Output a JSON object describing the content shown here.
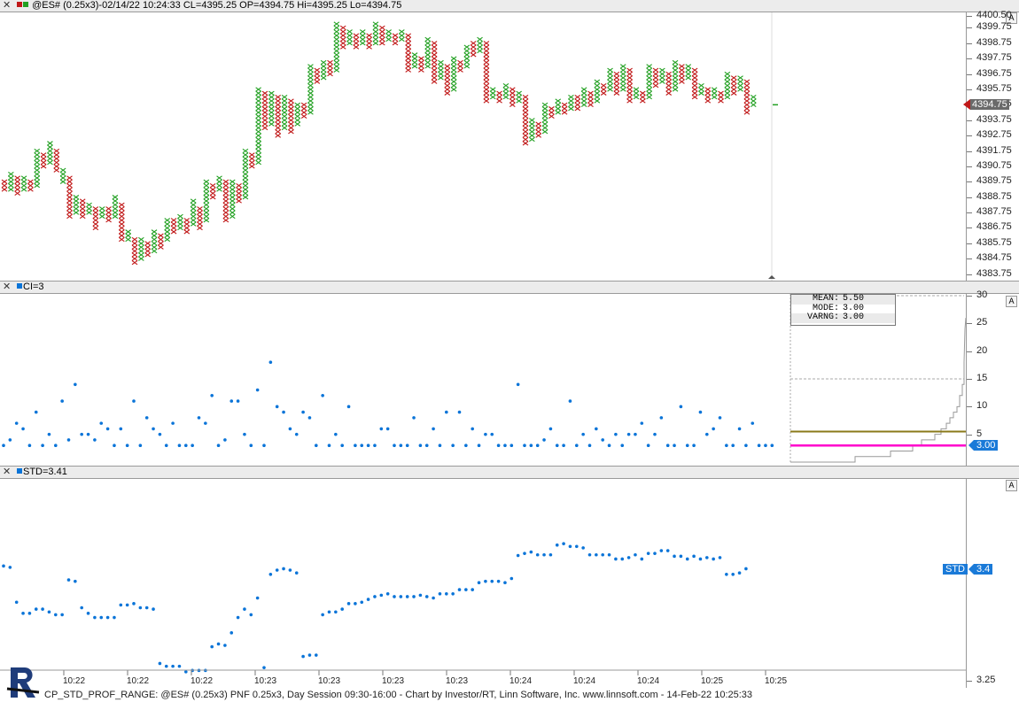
{
  "colors": {
    "up": "#22a022",
    "down": "#c01818",
    "dot": "#0a74d8",
    "olive": "#8a7a1a",
    "magenta": "#ff00cc",
    "grid": "#b0b0b0",
    "labelbg": "#1a7ad8",
    "pricebg": "#6a6a6a"
  },
  "main": {
    "title": "@ES# (0.25x3)-02/14/22 10:24:33 CL=4395.25 OP=4394.75 Hi=4395.25 Lo=4394.75",
    "ticks": [
      "4400.50",
      "4399.75",
      "4398.75",
      "4397.75",
      "4396.75",
      "4395.75",
      "4394.75",
      "4393.75",
      "4392.75",
      "4391.75",
      "4390.75",
      "4389.75",
      "4388.75",
      "4387.75",
      "4386.75",
      "4385.75",
      "4384.75",
      "4383.75"
    ],
    "price_label": "4394.75",
    "a_label": "A"
  },
  "ci": {
    "title": "CI=3",
    "ticks": [
      "30",
      "25",
      "20",
      "15",
      "10",
      "5"
    ],
    "value_label": "3.00",
    "a_label": "A",
    "stats": [
      {
        "k": "MEAN:",
        "v": "5.50"
      },
      {
        "k": "MODE:",
        "v": "3.00"
      },
      {
        "k": "VARNG:",
        "v": "3.00"
      }
    ]
  },
  "std": {
    "title": "STD=3.41",
    "ticks": [
      "3.25"
    ],
    "series_label": "STD",
    "value_label": "3.4",
    "a_label": "A"
  },
  "x_axis": {
    "labels": [
      "10:22",
      "10:22",
      "10:22",
      "10:23",
      "10:23",
      "10:23",
      "10:23",
      "10:24",
      "10:24",
      "10:24",
      "10:25",
      "10:25"
    ]
  },
  "footer": "CP_STD_PROF_RANGE: @ES# (0.25x3) PNF 0.25x3, Day Session 09:30-16:00 - Chart by Investor/RT, Linn Software, Inc. www.linnsoft.com - 14-Feb-22 10:25:33",
  "chart_data": [
    {
      "type": "point-and-figure",
      "title": "@ES# (0.25x3)-02/14/22 10:24:33 CL=4395.25 OP=4394.75 Hi=4395.25 Lo=4394.75",
      "box_size": 0.25,
      "y_ticks": [
        4400.5,
        4399.75,
        4398.75,
        4397.75,
        4396.75,
        4395.75,
        4394.75,
        4393.75,
        4392.75,
        4391.75,
        4390.75,
        4389.75,
        4388.75,
        4387.75,
        4386.75,
        4385.75,
        4384.75,
        4383.75
      ],
      "ylim": [
        4383.5,
        4400.75
      ],
      "last_price": 4394.75,
      "columns": [
        {
          "t": "O",
          "lo": 4389.25,
          "hi": 4389.75
        },
        {
          "t": "X",
          "lo": 4389.25,
          "hi": 4390.25
        },
        {
          "t": "O",
          "lo": 4389.0,
          "hi": 4390.0
        },
        {
          "t": "X",
          "lo": 4389.25,
          "hi": 4390.0
        },
        {
          "t": "O",
          "lo": 4389.25,
          "hi": 4389.75
        },
        {
          "t": "X",
          "lo": 4389.5,
          "hi": 4391.75
        },
        {
          "t": "O",
          "lo": 4390.75,
          "hi": 4391.5
        },
        {
          "t": "X",
          "lo": 4391.0,
          "hi": 4392.25
        },
        {
          "t": "O",
          "lo": 4390.5,
          "hi": 4391.75
        },
        {
          "t": "X",
          "lo": 4389.75,
          "hi": 4390.5
        },
        {
          "t": "O",
          "lo": 4387.5,
          "hi": 4390.0
        },
        {
          "t": "X",
          "lo": 4387.75,
          "hi": 4388.75
        },
        {
          "t": "O",
          "lo": 4387.5,
          "hi": 4388.5
        },
        {
          "t": "X",
          "lo": 4387.75,
          "hi": 4388.25
        },
        {
          "t": "O",
          "lo": 4386.75,
          "hi": 4388.0
        },
        {
          "t": "X",
          "lo": 4387.5,
          "hi": 4388.0
        },
        {
          "t": "O",
          "lo": 4387.25,
          "hi": 4388.0
        },
        {
          "t": "X",
          "lo": 4387.5,
          "hi": 4388.75
        },
        {
          "t": "O",
          "lo": 4386.0,
          "hi": 4388.25
        },
        {
          "t": "X",
          "lo": 4386.0,
          "hi": 4386.5
        },
        {
          "t": "O",
          "lo": 4384.5,
          "hi": 4386.0
        },
        {
          "t": "X",
          "lo": 4384.75,
          "hi": 4386.0
        },
        {
          "t": "O",
          "lo": 4385.0,
          "hi": 4385.75
        },
        {
          "t": "X",
          "lo": 4385.25,
          "hi": 4386.5
        },
        {
          "t": "O",
          "lo": 4385.5,
          "hi": 4386.25
        },
        {
          "t": "X",
          "lo": 4386.0,
          "hi": 4387.25
        },
        {
          "t": "O",
          "lo": 4386.5,
          "hi": 4387.25
        },
        {
          "t": "X",
          "lo": 4386.75,
          "hi": 4387.5
        },
        {
          "t": "O",
          "lo": 4386.5,
          "hi": 4387.25
        },
        {
          "t": "X",
          "lo": 4387.0,
          "hi": 4388.5
        },
        {
          "t": "O",
          "lo": 4386.75,
          "hi": 4388.0
        },
        {
          "t": "X",
          "lo": 4387.25,
          "hi": 4389.75
        },
        {
          "t": "O",
          "lo": 4388.75,
          "hi": 4389.5
        },
        {
          "t": "X",
          "lo": 4389.25,
          "hi": 4390.0
        },
        {
          "t": "O",
          "lo": 4387.25,
          "hi": 4389.75
        },
        {
          "t": "X",
          "lo": 4387.5,
          "hi": 4389.75
        },
        {
          "t": "O",
          "lo": 4388.5,
          "hi": 4389.5
        },
        {
          "t": "X",
          "lo": 4388.75,
          "hi": 4391.75
        },
        {
          "t": "O",
          "lo": 4390.75,
          "hi": 4391.5
        },
        {
          "t": "X",
          "lo": 4391.0,
          "hi": 4395.75
        },
        {
          "t": "O",
          "lo": 4393.25,
          "hi": 4395.5
        },
        {
          "t": "X",
          "lo": 4393.5,
          "hi": 4395.5
        },
        {
          "t": "O",
          "lo": 4392.75,
          "hi": 4395.25
        },
        {
          "t": "X",
          "lo": 4393.25,
          "hi": 4395.25
        },
        {
          "t": "O",
          "lo": 4393.0,
          "hi": 4395.0
        },
        {
          "t": "X",
          "lo": 4393.5,
          "hi": 4394.75
        },
        {
          "t": "O",
          "lo": 4394.0,
          "hi": 4394.75
        },
        {
          "t": "X",
          "lo": 4394.25,
          "hi": 4397.25
        },
        {
          "t": "O",
          "lo": 4396.25,
          "hi": 4397.0
        },
        {
          "t": "X",
          "lo": 4396.5,
          "hi": 4397.5
        },
        {
          "t": "O",
          "lo": 4396.75,
          "hi": 4397.5
        },
        {
          "t": "X",
          "lo": 4397.0,
          "hi": 4400.0
        },
        {
          "t": "O",
          "lo": 4398.5,
          "hi": 4399.75
        },
        {
          "t": "X",
          "lo": 4398.75,
          "hi": 4399.5
        },
        {
          "t": "O",
          "lo": 4398.5,
          "hi": 4399.25
        },
        {
          "t": "X",
          "lo": 4398.75,
          "hi": 4399.5
        },
        {
          "t": "O",
          "lo": 4398.5,
          "hi": 4399.25
        },
        {
          "t": "X",
          "lo": 4398.75,
          "hi": 4400.0
        },
        {
          "t": "O",
          "lo": 4398.75,
          "hi": 4399.75
        },
        {
          "t": "X",
          "lo": 4399.0,
          "hi": 4399.5
        },
        {
          "t": "O",
          "lo": 4398.75,
          "hi": 4399.25
        },
        {
          "t": "X",
          "lo": 4399.0,
          "hi": 4399.5
        },
        {
          "t": "O",
          "lo": 4397.0,
          "hi": 4399.25
        },
        {
          "t": "X",
          "lo": 4397.25,
          "hi": 4398.0
        },
        {
          "t": "O",
          "lo": 4397.0,
          "hi": 4397.75
        },
        {
          "t": "X",
          "lo": 4397.25,
          "hi": 4399.0
        },
        {
          "t": "O",
          "lo": 4396.25,
          "hi": 4398.75
        },
        {
          "t": "X",
          "lo": 4396.5,
          "hi": 4397.5
        },
        {
          "t": "O",
          "lo": 4395.5,
          "hi": 4397.25
        },
        {
          "t": "X",
          "lo": 4395.75,
          "hi": 4397.75
        },
        {
          "t": "O",
          "lo": 4397.0,
          "hi": 4397.5
        },
        {
          "t": "X",
          "lo": 4397.25,
          "hi": 4398.5
        },
        {
          "t": "O",
          "lo": 4398.0,
          "hi": 4398.75
        },
        {
          "t": "X",
          "lo": 4398.25,
          "hi": 4399.0
        },
        {
          "t": "O",
          "lo": 4395.0,
          "hi": 4398.75
        },
        {
          "t": "X",
          "lo": 4395.25,
          "hi": 4395.75
        },
        {
          "t": "O",
          "lo": 4395.0,
          "hi": 4395.5
        },
        {
          "t": "X",
          "lo": 4395.25,
          "hi": 4396.0
        },
        {
          "t": "O",
          "lo": 4394.75,
          "hi": 4395.75
        },
        {
          "t": "X",
          "lo": 4395.0,
          "hi": 4395.5
        },
        {
          "t": "O",
          "lo": 4392.25,
          "hi": 4395.25
        },
        {
          "t": "X",
          "lo": 4392.5,
          "hi": 4393.75
        },
        {
          "t": "O",
          "lo": 4392.75,
          "hi": 4393.5
        },
        {
          "t": "X",
          "lo": 4393.0,
          "hi": 4394.75
        },
        {
          "t": "O",
          "lo": 4394.0,
          "hi": 4394.5
        },
        {
          "t": "X",
          "lo": 4394.25,
          "hi": 4395.0
        },
        {
          "t": "O",
          "lo": 4394.25,
          "hi": 4394.75
        },
        {
          "t": "X",
          "lo": 4394.5,
          "hi": 4395.25
        },
        {
          "t": "O",
          "lo": 4394.5,
          "hi": 4395.25
        },
        {
          "t": "X",
          "lo": 4394.75,
          "hi": 4395.75
        },
        {
          "t": "O",
          "lo": 4394.75,
          "hi": 4395.5
        },
        {
          "t": "X",
          "lo": 4395.0,
          "hi": 4396.25
        },
        {
          "t": "O",
          "lo": 4395.5,
          "hi": 4396.0
        },
        {
          "t": "X",
          "lo": 4395.75,
          "hi": 4397.0
        },
        {
          "t": "O",
          "lo": 4395.5,
          "hi": 4396.75
        },
        {
          "t": "X",
          "lo": 4395.75,
          "hi": 4397.25
        },
        {
          "t": "O",
          "lo": 4395.0,
          "hi": 4397.0
        },
        {
          "t": "X",
          "lo": 4395.25,
          "hi": 4395.75
        },
        {
          "t": "O",
          "lo": 4395.0,
          "hi": 4395.5
        },
        {
          "t": "X",
          "lo": 4395.25,
          "hi": 4397.25
        },
        {
          "t": "O",
          "lo": 4396.0,
          "hi": 4397.0
        },
        {
          "t": "X",
          "lo": 4396.25,
          "hi": 4397.0
        },
        {
          "t": "O",
          "lo": 4395.5,
          "hi": 4396.75
        },
        {
          "t": "X",
          "lo": 4395.75,
          "hi": 4397.5
        },
        {
          "t": "O",
          "lo": 4396.25,
          "hi": 4397.25
        },
        {
          "t": "X",
          "lo": 4396.5,
          "hi": 4397.25
        },
        {
          "t": "O",
          "lo": 4395.25,
          "hi": 4397.0
        },
        {
          "t": "X",
          "lo": 4395.5,
          "hi": 4396.0
        },
        {
          "t": "O",
          "lo": 4395.0,
          "hi": 4395.75
        },
        {
          "t": "X",
          "lo": 4395.25,
          "hi": 4395.75
        },
        {
          "t": "O",
          "lo": 4395.0,
          "hi": 4395.5
        },
        {
          "t": "X",
          "lo": 4395.25,
          "hi": 4396.75
        },
        {
          "t": "O",
          "lo": 4395.5,
          "hi": 4396.5
        },
        {
          "t": "X",
          "lo": 4395.75,
          "hi": 4396.5
        },
        {
          "t": "O",
          "lo": 4394.25,
          "hi": 4396.25
        },
        {
          "t": "X",
          "lo": 4394.75,
          "hi": 4395.25
        }
      ]
    },
    {
      "type": "scatter",
      "title": "CI=3",
      "y_ticks": [
        30,
        25,
        20,
        15,
        10,
        5
      ],
      "ylim": [
        0,
        30
      ],
      "last_value": 3.0,
      "series": [
        {
          "name": "CI=3",
          "values": [
            3,
            4,
            7,
            6,
            3,
            9,
            3,
            5,
            3,
            11,
            4,
            14,
            5,
            5,
            4,
            7,
            6,
            3,
            6,
            3,
            11,
            3,
            8,
            6,
            5,
            3,
            7,
            3,
            3,
            3,
            8,
            7,
            12,
            3,
            4,
            11,
            11,
            5,
            3,
            13,
            3,
            18,
            10,
            9,
            6,
            5,
            9,
            8,
            3,
            12,
            3,
            5,
            3,
            10,
            3,
            3,
            3,
            3,
            6,
            6,
            3,
            3,
            3,
            8,
            3,
            3,
            6,
            3,
            9,
            3,
            9,
            3,
            6,
            3,
            5,
            5,
            3,
            3,
            3,
            14,
            3,
            3,
            3,
            4,
            6,
            3,
            3,
            11,
            3,
            5,
            3,
            6,
            4,
            3,
            5,
            3,
            5,
            5,
            7,
            3,
            5,
            8,
            3,
            3,
            10,
            3,
            3,
            9,
            5,
            6,
            8,
            3,
            3,
            6,
            3,
            7,
            3,
            3,
            3
          ]
        }
      ],
      "histogram_stats": {
        "MEAN": 5.5,
        "MODE": 3.0,
        "VARNG": 3.0
      }
    },
    {
      "type": "scatter",
      "title": "STD=3.41",
      "y_ticks": [
        3.25
      ],
      "ylim": [
        3.24,
        3.54
      ],
      "last_value": 3.41,
      "series": [
        {
          "name": "STD",
          "values": [
            3.415,
            3.413,
            3.363,
            3.347,
            3.347,
            3.353,
            3.353,
            3.349,
            3.345,
            3.345,
            3.395,
            3.393,
            3.355,
            3.347,
            3.341,
            3.341,
            3.341,
            3.341,
            3.359,
            3.359,
            3.361,
            3.355,
            3.355,
            3.353,
            3.275,
            3.271,
            3.271,
            3.271,
            3.263,
            3.265,
            3.265,
            3.265,
            3.299,
            3.303,
            3.301,
            3.319,
            3.341,
            3.353,
            3.345,
            3.369,
            3.269,
            3.403,
            3.409,
            3.411,
            3.409,
            3.405,
            3.285,
            3.287,
            3.287,
            3.345,
            3.349,
            3.349,
            3.353,
            3.361,
            3.361,
            3.363,
            3.367,
            3.371,
            3.373,
            3.375,
            3.371,
            3.371,
            3.371,
            3.371,
            3.373,
            3.371,
            3.369,
            3.375,
            3.375,
            3.375,
            3.381,
            3.381,
            3.381,
            3.391,
            3.393,
            3.393,
            3.393,
            3.391,
            3.397,
            3.43,
            3.433,
            3.435,
            3.431,
            3.431,
            3.431,
            3.445,
            3.447,
            3.443,
            3.443,
            3.441,
            3.431,
            3.431,
            3.431,
            3.431,
            3.425,
            3.425,
            3.427,
            3.431,
            3.425,
            3.433,
            3.433,
            3.437,
            3.437,
            3.429,
            3.429,
            3.425,
            3.429,
            3.425,
            3.427,
            3.425,
            3.427,
            3.403,
            3.403,
            3.405,
            3.411
          ]
        }
      ]
    }
  ]
}
